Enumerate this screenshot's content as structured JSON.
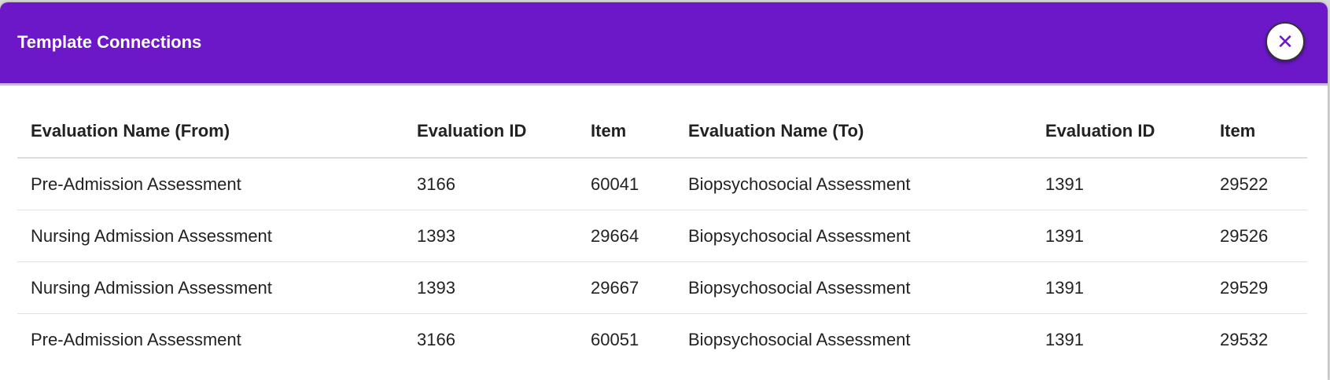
{
  "modal": {
    "title": "Template Connections",
    "close_icon": "close-icon",
    "accent_color": "#6c18c8"
  },
  "table": {
    "headers": [
      "Evaluation Name (From)",
      "Evaluation ID",
      "Item",
      "Evaluation Name (To)",
      "Evaluation ID",
      "Item"
    ],
    "rows": [
      [
        "Pre-Admission Assessment",
        "3166",
        "60041",
        "Biopsychosocial Assessment",
        "1391",
        "29522"
      ],
      [
        "Nursing Admission Assessment",
        "1393",
        "29664",
        "Biopsychosocial Assessment",
        "1391",
        "29526"
      ],
      [
        "Nursing Admission Assessment",
        "1393",
        "29667",
        "Biopsychosocial Assessment",
        "1391",
        "29529"
      ],
      [
        "Pre-Admission Assessment",
        "3166",
        "60051",
        "Biopsychosocial Assessment",
        "1391",
        "29532"
      ]
    ]
  }
}
